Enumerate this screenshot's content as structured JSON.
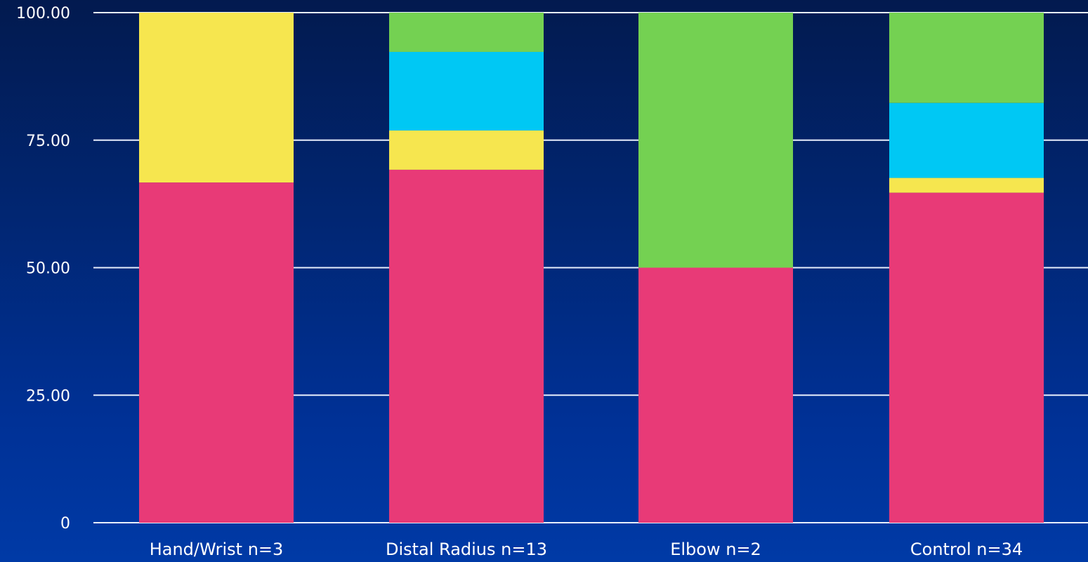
{
  "chart_data": {
    "type": "bar",
    "stacked": true,
    "title": "",
    "xlabel": "",
    "ylabel": "",
    "ylim": [
      0,
      100
    ],
    "yticks": [
      "0",
      "25.00",
      "50.00",
      "75.00",
      "100.00"
    ],
    "ytick_values": [
      0,
      25,
      50,
      75,
      100
    ],
    "grid": true,
    "legend": "none",
    "categories": [
      "Hand/Wrist n=3",
      "Distal Radius n=13",
      "Elbow n=2",
      "Control n=34"
    ],
    "series": [
      {
        "color": "#e83a77",
        "values": [
          66.7,
          69.2,
          50.0,
          64.7
        ]
      },
      {
        "color": "#f6e64f",
        "values": [
          33.3,
          7.7,
          0.0,
          2.9
        ]
      },
      {
        "color": "#00c8f4",
        "values": [
          0.0,
          15.4,
          0.0,
          14.7
        ]
      },
      {
        "color": "#74d152",
        "values": [
          0.0,
          7.7,
          50.0,
          17.7
        ]
      }
    ]
  }
}
